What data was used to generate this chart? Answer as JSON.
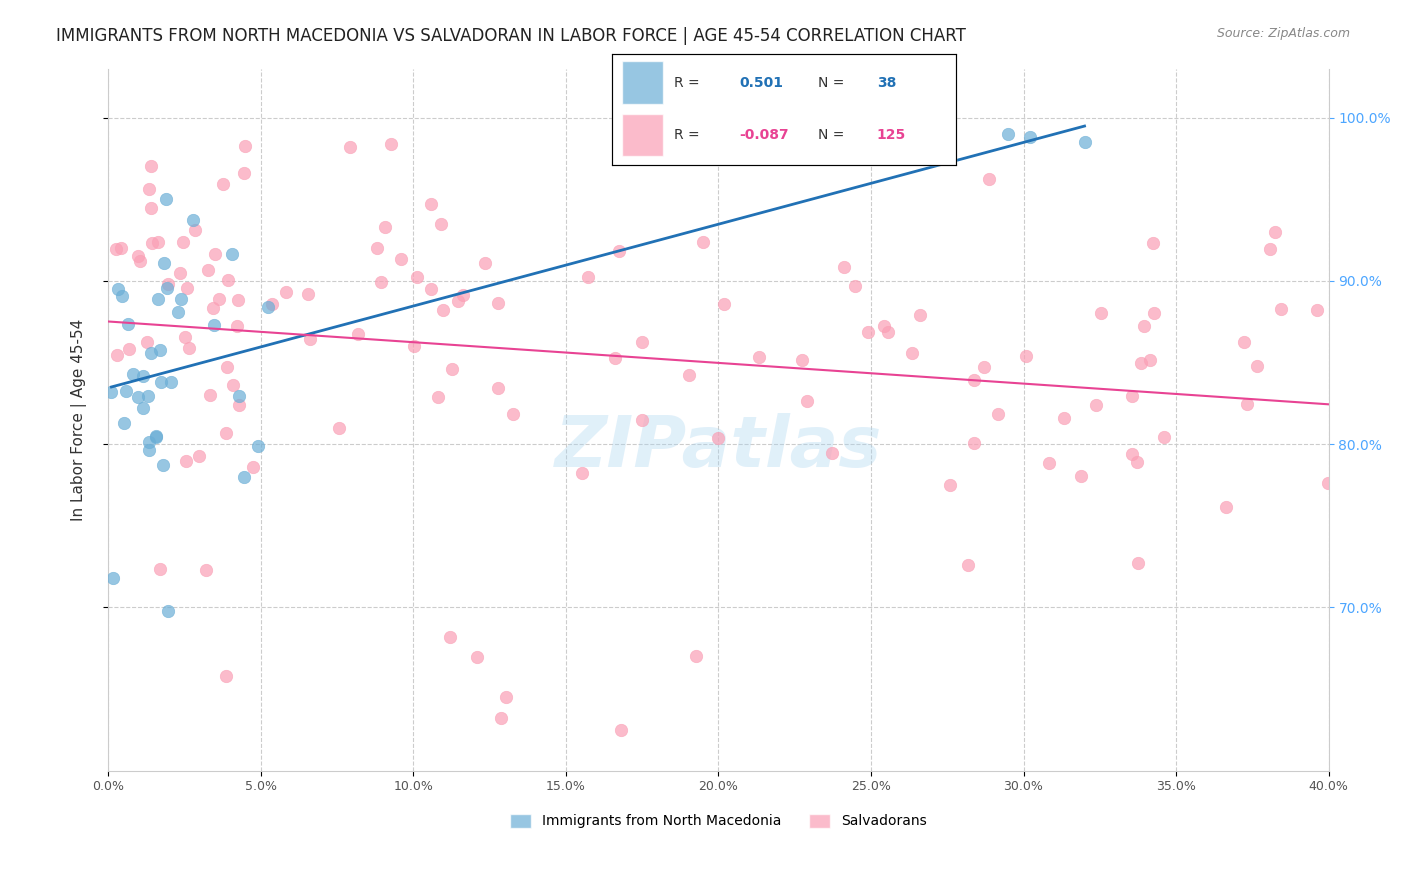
{
  "title": "IMMIGRANTS FROM NORTH MACEDONIA VS SALVADORAN IN LABOR FORCE | AGE 45-54 CORRELATION CHART",
  "source": "Source: ZipAtlas.com",
  "ylabel": "In Labor Force | Age 45-54",
  "legend_blue_r": "0.501",
  "legend_blue_n": "38",
  "legend_pink_r": "-0.087",
  "legend_pink_n": "125",
  "legend_label_blue": "Immigrants from North Macedonia",
  "legend_label_pink": "Salvadorans",
  "xlim": [
    0.0,
    0.4
  ],
  "ylim": [
    0.6,
    1.03
  ],
  "blue_color": "#6baed6",
  "blue_line_color": "#2171b5",
  "pink_color": "#fa9fb5",
  "pink_line_color": "#e84393",
  "watermark": "ZIPatlas"
}
